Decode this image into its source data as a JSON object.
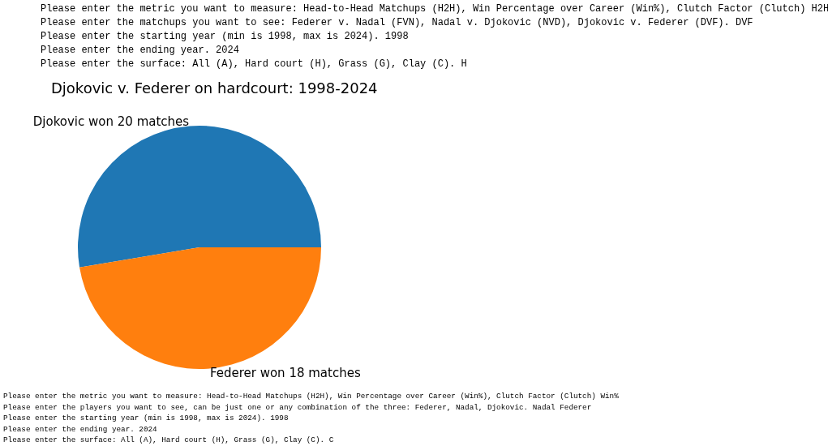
{
  "chart_data": {
    "type": "pie",
    "title": "Djokovic v. Federer on hardcourt: 1998-2024",
    "categories": [
      "Djokovic won 20 matches",
      "Federer won 18 matches"
    ],
    "values": [
      20,
      18
    ],
    "colors": [
      "#1f77b4",
      "#ff7f0e"
    ],
    "annotations": [
      "Please enter the metric you want to measure: Head-to-Head Matchups (H2H), Win Percentage over Career (Win%), Clutch Factor (Clutch) H2H",
      "Please enter the matchups you want to see: Federer v. Nadal (FVN), Nadal v. Djokovic (NVD), Djokovic v. Federer (DVF). DVF",
      "Please enter the starting year (min is 1998, max is 2024). 1998",
      "Please enter the ending year. 2024",
      "Please enter the surface: All (A), Hard court (H), Grass (G), Clay (C). H",
      "Please enter the metric you want to measure: Head-to-Head Matchups (H2H), Win Percentage over Career (Win%), Clutch Factor (Clutch) Win%",
      "Please enter the players you want to see, can be just one or any combination of the three: Federer, Nadal, Djokovic. Nadal Federer",
      "Please enter the starting year (min is 1998, max is 2024). 1998",
      "Please enter the ending year. 2024",
      "Please enter the surface: All (A), Hard court (H), Grass (G), Clay (C). C"
    ]
  }
}
